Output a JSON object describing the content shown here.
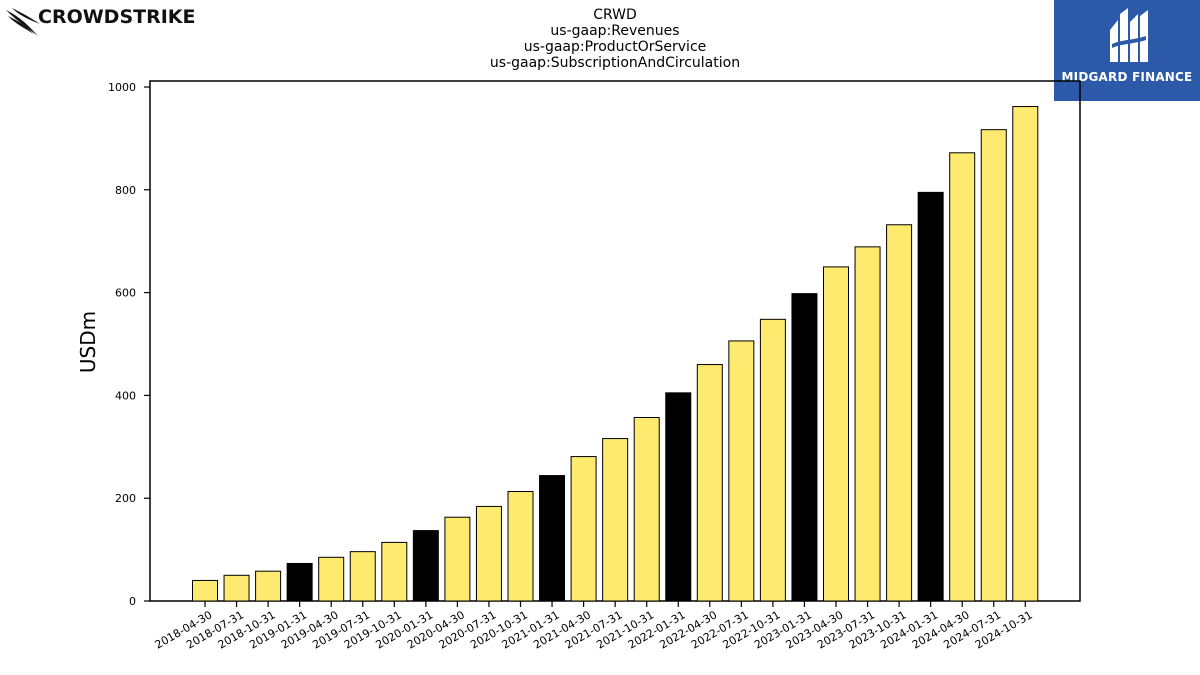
{
  "header": {
    "brand_left": "CROWDSTRIKE",
    "brand_right": "MIDGARD FINANCE"
  },
  "chart_data": {
    "type": "bar",
    "title": "CRWD",
    "subtitle_lines": [
      "us-gaap:Revenues",
      "us-gaap:ProductOrService",
      "us-gaap:SubscriptionAndCirculation"
    ],
    "xlabel": "",
    "ylabel": "USDm",
    "ylim": [
      0,
      1000
    ],
    "yticks": [
      0,
      200,
      400,
      600,
      800,
      1000
    ],
    "grid": false,
    "colors": {
      "default": "#ffea70",
      "highlight": "#000000",
      "edge": "#000000"
    },
    "categories": [
      "2018-04-30",
      "2018-07-31",
      "2018-10-31",
      "2019-01-31",
      "2019-04-30",
      "2019-07-31",
      "2019-10-31",
      "2020-01-31",
      "2020-04-30",
      "2020-07-31",
      "2020-10-31",
      "2021-01-31",
      "2021-04-30",
      "2021-07-31",
      "2021-10-31",
      "2022-01-31",
      "2022-04-30",
      "2022-07-31",
      "2022-10-31",
      "2023-01-31",
      "2023-04-30",
      "2023-07-31",
      "2023-10-31",
      "2024-01-31",
      "2024-04-30",
      "2024-07-31",
      "2024-10-31"
    ],
    "values": [
      40,
      50,
      58,
      73,
      85,
      96,
      114,
      137,
      163,
      184,
      213,
      244,
      281,
      316,
      357,
      405,
      460,
      506,
      548,
      598,
      650,
      689,
      732,
      795,
      872,
      917,
      962
    ],
    "highlighted": [
      "2019-01-31",
      "2020-01-31",
      "2021-01-31",
      "2022-01-31",
      "2023-01-31",
      "2024-01-31"
    ]
  }
}
